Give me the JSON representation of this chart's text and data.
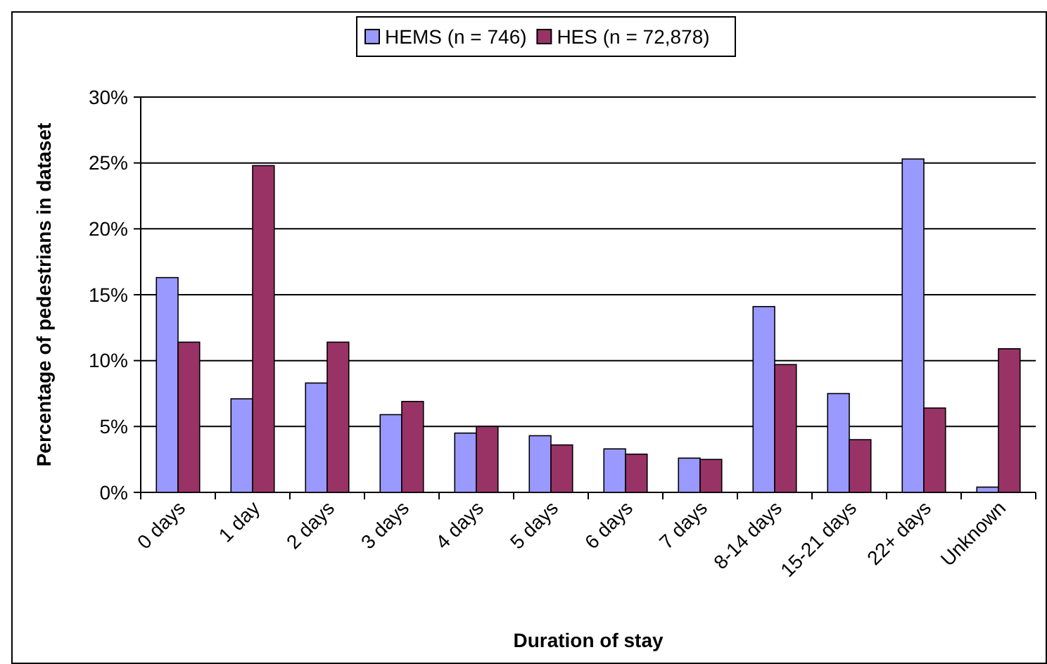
{
  "chart_data": {
    "type": "bar",
    "xlabel": "Duration of stay",
    "ylabel": "Percentage of pedestrians in dataset",
    "categories": [
      "0 days",
      "1 day",
      "2 days",
      "3 days",
      "4 days",
      "5 days",
      "6 days",
      "7 days",
      "8-14 days",
      "15-21 days",
      "22+ days",
      "Unknown"
    ],
    "series": [
      {
        "name": "HEMS (n = 746)",
        "color": "#9999ff",
        "values": [
          16.3,
          7.1,
          8.3,
          5.9,
          4.5,
          4.3,
          3.3,
          2.6,
          14.1,
          7.5,
          25.3,
          0.4
        ]
      },
      {
        "name": "HES (n = 72,878)",
        "color": "#993366",
        "values": [
          11.4,
          24.8,
          11.4,
          6.9,
          5.0,
          3.6,
          2.9,
          2.5,
          9.7,
          4.0,
          6.4,
          10.9
        ]
      }
    ],
    "ylim": [
      0,
      30
    ],
    "yticks": [
      {
        "value": 0,
        "label": "0%"
      },
      {
        "value": 5,
        "label": "5%"
      },
      {
        "value": 10,
        "label": "10%"
      },
      {
        "value": 15,
        "label": "15%"
      },
      {
        "value": 20,
        "label": "20%"
      },
      {
        "value": 25,
        "label": "25%"
      },
      {
        "value": 30,
        "label": "30%"
      }
    ],
    "grid": "y",
    "legend": "top"
  }
}
